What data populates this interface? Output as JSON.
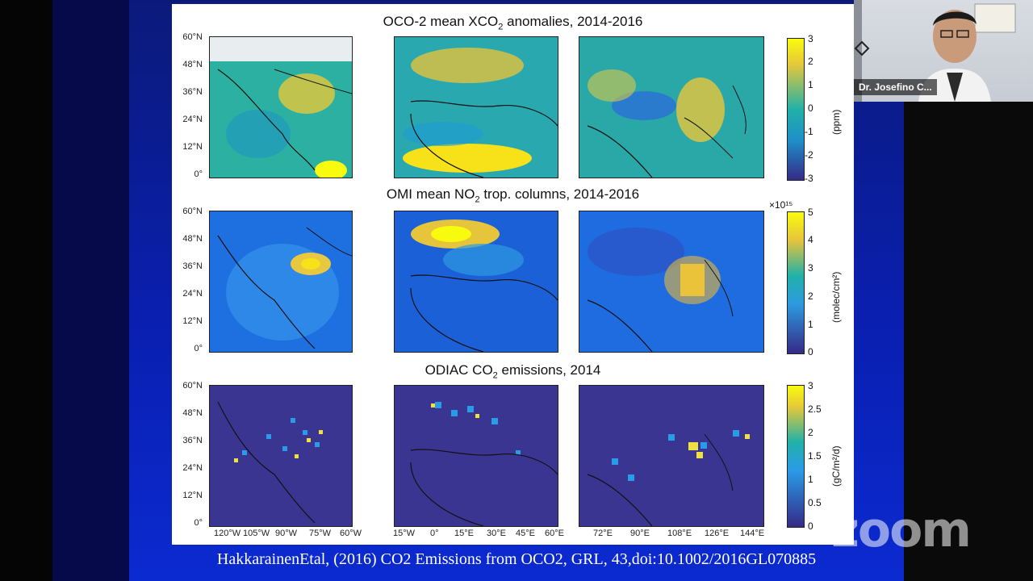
{
  "sections": [
    {
      "title_main": "OCO-2 mean XCO",
      "title_sub": "2",
      "title_rest": " anomalies, 2014-2016",
      "colorbar": {
        "ticks": [
          "3",
          "2",
          "1",
          "0",
          "-1",
          "-2",
          "-3"
        ],
        "label": "(ppm)",
        "exponent": ""
      }
    },
    {
      "title_main": "OMI mean NO",
      "title_sub": "2",
      "title_rest": " trop. columns, 2014-2016",
      "colorbar": {
        "ticks": [
          "5",
          "4",
          "3",
          "2",
          "1",
          "0"
        ],
        "label": "(molec/cm²)",
        "exponent": "×10¹⁵"
      }
    },
    {
      "title_main": "ODIAC CO",
      "title_sub": "2",
      "title_rest": " emissions, 2014",
      "colorbar": {
        "ticks": [
          "3",
          "2.5",
          "2",
          "1.5",
          "1",
          "0.5",
          "0"
        ],
        "label": "(gC/m²/d)",
        "exponent": ""
      }
    }
  ],
  "lat_labels": [
    "60°N",
    "48°N",
    "36°N",
    "24°N",
    "12°N",
    "0°"
  ],
  "lon_labels": {
    "americas": [
      "120°W",
      "105°W",
      "90°W",
      "75°W",
      "60°W"
    ],
    "europe_africa": [
      "15°W",
      "0°",
      "15°E",
      "30°E",
      "45°E",
      "60°E"
    ],
    "asia": [
      "72°E",
      "90°E",
      "108°E",
      "126°E",
      "144°E"
    ]
  },
  "citation": "HakkarainenEtal, (2016) CO2 Emissions from OCO2, GRL, 43,doi:10.1002/2016GL070885",
  "participant": {
    "name": "Dr. Josefino C..."
  },
  "watermark": "zoom",
  "colors": {
    "parula_low": "#352a87",
    "parula_mid": "#21b1a8",
    "parula_high": "#f9fb0e",
    "slide_blue": "#0a1fb0"
  }
}
